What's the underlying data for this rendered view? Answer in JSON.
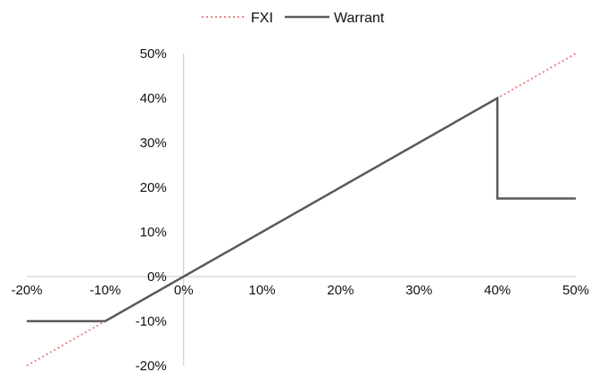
{
  "chart_data": {
    "type": "line",
    "title": "",
    "xlabel": "",
    "ylabel": "",
    "xlim": [
      -20,
      50
    ],
    "ylim": [
      -20,
      50
    ],
    "grid": false,
    "legend_position": "top-center",
    "x_ticks": [
      -20,
      -10,
      0,
      10,
      20,
      30,
      40,
      50
    ],
    "y_ticks": [
      -20,
      -10,
      0,
      10,
      20,
      30,
      40,
      50
    ],
    "x_tick_labels": [
      "-20%",
      "-10%",
      "0%",
      "10%",
      "20%",
      "30%",
      "40%",
      "50%"
    ],
    "y_tick_labels": [
      "-20%",
      "-10%",
      "0%",
      "10%",
      "20%",
      "30%",
      "40%",
      "50%"
    ],
    "series": [
      {
        "name": "FXI",
        "style": "dotted",
        "color": "#e8868a",
        "points": [
          [
            -20,
            -20
          ],
          [
            50,
            50
          ]
        ]
      },
      {
        "name": "Warrant",
        "style": "solid",
        "color": "#595959",
        "points": [
          [
            -20,
            -10
          ],
          [
            -10,
            -10
          ],
          [
            40,
            40
          ],
          [
            40,
            17.5
          ],
          [
            50,
            17.5
          ]
        ]
      }
    ]
  }
}
